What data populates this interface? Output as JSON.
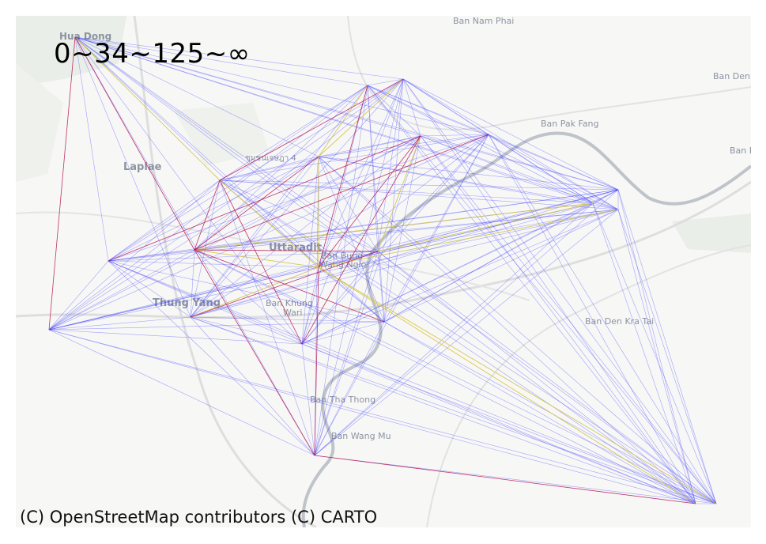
{
  "map": {
    "legend_title": "0~34~125~∞",
    "attribution": "(C) OpenStreetMap contributors (C) CARTO",
    "colors": {
      "background": "#f7f7f6",
      "low": "#3b3bff",
      "mid": "#e0cf3a",
      "high": "#c8103a",
      "river": "#b8bcc4",
      "road": "#d9d9d9",
      "label": "#8c94a1"
    },
    "place_labels": [
      {
        "name": "Hua Dong",
        "weight": "bold"
      },
      {
        "name": "Ban Nam Phai",
        "weight": "normal"
      },
      {
        "name": "Ban Den",
        "weight": "normal"
      },
      {
        "name": "Ban Pak Fang",
        "weight": "normal"
      },
      {
        "name": "Ban I",
        "weight": "normal"
      },
      {
        "name": "ชุมชนเจษฎา 4",
        "weight": "normal"
      },
      {
        "name": "Laplae",
        "weight": "bold"
      },
      {
        "name": "Uttaradit",
        "weight": "bold"
      },
      {
        "name": "Ban Bung",
        "weight": "normal"
      },
      {
        "name": "Wang Ngio",
        "weight": "normal"
      },
      {
        "name": "Thung Yang",
        "weight": "bold"
      },
      {
        "name": "Ban Khung",
        "weight": "normal"
      },
      {
        "name": "Wari",
        "weight": "normal"
      },
      {
        "name": "Ban Den Kra Tai",
        "weight": "normal"
      },
      {
        "name": "Ban Tha Thong",
        "weight": "normal"
      },
      {
        "name": "Ban Wang Mu",
        "weight": "normal"
      }
    ],
    "node_count": 19
  }
}
